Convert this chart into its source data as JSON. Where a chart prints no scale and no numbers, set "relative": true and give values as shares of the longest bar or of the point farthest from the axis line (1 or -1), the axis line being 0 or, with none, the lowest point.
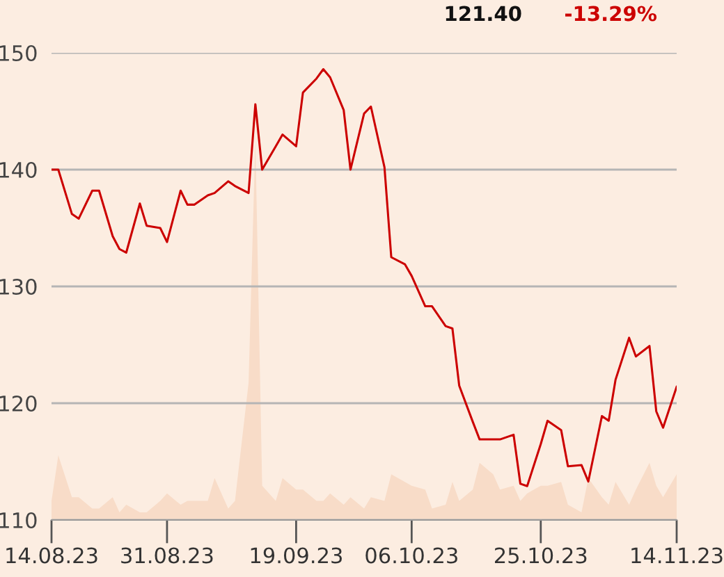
{
  "chart_data": [
    {
      "type": "line",
      "annotations": [
        "121.40",
        "-13.29%"
      ],
      "series": [
        {
          "color": "#cc0000",
          "x": [
            "2023-08-14",
            "2023-08-15",
            "2023-08-17",
            "2023-08-18",
            "2023-08-20",
            "2023-08-21",
            "2023-08-23",
            "2023-08-24",
            "2023-08-25",
            "2023-08-27",
            "2023-08-28",
            "2023-08-30",
            "2023-08-31",
            "2023-09-02",
            "2023-09-03",
            "2023-09-04",
            "2023-09-06",
            "2023-09-07",
            "2023-09-09",
            "2023-09-10",
            "2023-09-12",
            "2023-09-13",
            "2023-09-14",
            "2023-09-16",
            "2023-09-17",
            "2023-09-19",
            "2023-09-20",
            "2023-09-22",
            "2023-09-23",
            "2023-09-24",
            "2023-09-26",
            "2023-09-27",
            "2023-09-29",
            "2023-09-30",
            "2023-10-02",
            "2023-10-03",
            "2023-10-05",
            "2023-10-06",
            "2023-10-08",
            "2023-10-09",
            "2023-10-11",
            "2023-10-12",
            "2023-10-13",
            "2023-10-15",
            "2023-10-16",
            "2023-10-18",
            "2023-10-19",
            "2023-10-21",
            "2023-10-22",
            "2023-10-23",
            "2023-10-25",
            "2023-10-26",
            "2023-10-28",
            "2023-10-29",
            "2023-10-31",
            "2023-11-01",
            "2023-11-03",
            "2023-11-04",
            "2023-11-05",
            "2023-11-07",
            "2023-11-08",
            "2023-11-10",
            "2023-11-11",
            "2023-11-12",
            "2023-11-14"
          ],
          "values": [
            140,
            140,
            136.2,
            135.8,
            138.2,
            138.2,
            134.3,
            133.2,
            132.9,
            137.1,
            135.2,
            135.0,
            133.8,
            138.2,
            137.0,
            137.0,
            137.8,
            138.0,
            139.0,
            138.6,
            138.0,
            145.6,
            140.0,
            142.0,
            143.0,
            142.0,
            146.6,
            147.8,
            148.6,
            147.9,
            145.1,
            140.0,
            144.8,
            145.4,
            140.2,
            132.5,
            131.9,
            130.9,
            128.3,
            128.3,
            126.6,
            126.4,
            121.5,
            118.4,
            116.9,
            116.9,
            116.9,
            117.3,
            113.1,
            112.9,
            116.5,
            118.5,
            117.7,
            114.6,
            114.7,
            113.3,
            118.9,
            118.5,
            122.0,
            125.6,
            124.0,
            124.9,
            119.3,
            117.9,
            121.4
          ]
        }
      ],
      "xlim": [
        "2023-08-14",
        "2023-11-14"
      ],
      "xticks": [
        {
          "value": "2023-08-14",
          "label": "14.08.23"
        },
        {
          "value": "2023-08-31",
          "label": "31.08.23"
        },
        {
          "value": "2023-09-19",
          "label": "19.09.23"
        },
        {
          "value": "2023-10-06",
          "label": "06.10.23"
        },
        {
          "value": "2023-10-25",
          "label": "25.10.23"
        },
        {
          "value": "2023-11-14",
          "label": "14.11.23"
        }
      ],
      "ylim": [
        110,
        150
      ],
      "yticks": [
        110,
        120,
        130,
        140,
        150
      ],
      "grid": "y",
      "marker": "none",
      "line_style": "solid"
    },
    {
      "type": "area",
      "relative": true,
      "tick_labels": false,
      "xlim": [
        "2023-08-14",
        "2023-11-14"
      ],
      "xticks": [
        {
          "value": "2023-08-14",
          "label": null
        },
        {
          "value": "2023-08-31",
          "label": null
        },
        {
          "value": "2023-09-19",
          "label": null
        },
        {
          "value": "2023-10-06",
          "label": null
        },
        {
          "value": "2023-10-25",
          "label": null
        },
        {
          "value": "2023-11-14",
          "label": null
        }
      ],
      "series": [
        {
          "color": "#f8dcc8",
          "x": [
            "2023-08-14",
            "2023-08-15",
            "2023-08-17",
            "2023-08-18",
            "2023-08-20",
            "2023-08-21",
            "2023-08-23",
            "2023-08-24",
            "2023-08-25",
            "2023-08-27",
            "2023-08-28",
            "2023-08-30",
            "2023-08-31",
            "2023-09-02",
            "2023-09-03",
            "2023-09-04",
            "2023-09-06",
            "2023-09-07",
            "2023-09-09",
            "2023-09-10",
            "2023-09-12",
            "2023-09-13",
            "2023-09-14",
            "2023-09-16",
            "2023-09-17",
            "2023-09-19",
            "2023-09-20",
            "2023-09-22",
            "2023-09-23",
            "2023-09-24",
            "2023-09-26",
            "2023-09-27",
            "2023-09-29",
            "2023-09-30",
            "2023-10-02",
            "2023-10-03",
            "2023-10-05",
            "2023-10-06",
            "2023-10-08",
            "2023-10-09",
            "2023-10-11",
            "2023-10-12",
            "2023-10-13",
            "2023-10-15",
            "2023-10-16",
            "2023-10-18",
            "2023-10-19",
            "2023-10-21",
            "2023-10-22",
            "2023-10-23",
            "2023-10-25",
            "2023-10-26",
            "2023-10-28",
            "2023-10-29",
            "2023-10-31",
            "2023-11-01",
            "2023-11-03",
            "2023-11-04",
            "2023-11-05",
            "2023-11-07",
            "2023-11-08",
            "2023-11-10",
            "2023-11-11",
            "2023-11-12",
            "2023-11-14"
          ],
          "values": [
            0.05,
            0.17,
            0.06,
            0.06,
            0.03,
            0.03,
            0.06,
            0.02,
            0.04,
            0.02,
            0.02,
            0.05,
            0.07,
            0.04,
            0.05,
            0.05,
            0.05,
            0.11,
            0.03,
            0.05,
            0.36,
            1,
            0.09,
            0.05,
            0.11,
            0.08,
            0.08,
            0.05,
            0.05,
            0.07,
            0.04,
            0.06,
            0.03,
            0.06,
            0.05,
            0.12,
            0.1,
            0.09,
            0.08,
            0.03,
            0.04,
            0.1,
            0.05,
            0.08,
            0.15,
            0.12,
            0.08,
            0.09,
            0.05,
            0.07,
            0.09,
            0.09,
            0.1,
            0.04,
            0.02,
            0.11,
            0.06,
            0.04,
            0.1,
            0.04,
            0.08,
            0.15,
            0.09,
            0.06,
            0.12
          ]
        }
      ]
    }
  ]
}
